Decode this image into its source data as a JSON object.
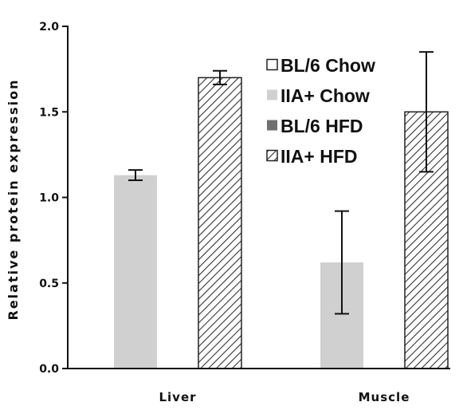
{
  "chart_data": {
    "type": "bar",
    "title": "",
    "xlabel": "",
    "ylabel": "Relative protein expression",
    "ylim": [
      0,
      2.0
    ],
    "yticks": [
      "0.0",
      "0.5",
      "1.0",
      "1.5",
      "2.0"
    ],
    "categories": [
      "Liver",
      "Muscle"
    ],
    "grid": false,
    "legend_position": "top-right",
    "series": [
      {
        "name": "BL/6 Chow",
        "fill": "white",
        "color": "#ffffff",
        "values": [
          null,
          null
        ],
        "error": [
          null,
          null
        ]
      },
      {
        "name": "IIA+ Chow",
        "fill": "solid",
        "color": "#d0d0d0",
        "values": [
          1.13,
          0.62
        ],
        "error": [
          0.03,
          0.3
        ]
      },
      {
        "name": "BL/6 HFD",
        "fill": "solid",
        "color": "#707070",
        "values": [
          null,
          null
        ],
        "error": [
          null,
          null
        ]
      },
      {
        "name": "IIA+ HFD",
        "fill": "hatch",
        "color": "#333333",
        "values": [
          1.7,
          1.5
        ],
        "error": [
          0.04,
          0.35
        ]
      }
    ]
  }
}
